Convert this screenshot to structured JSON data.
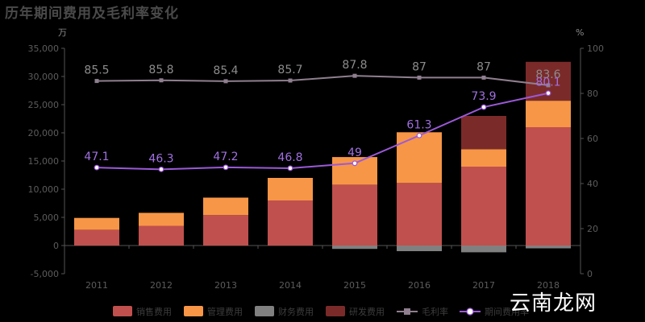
{
  "chart_data": {
    "type": "bar",
    "title": "历年期间费用及毛利率变化",
    "left_unit": "万",
    "right_unit": "%",
    "categories": [
      "2011",
      "2012",
      "2013",
      "2014",
      "2015",
      "2016",
      "2017",
      "2018"
    ],
    "ylim_left": [
      -5000,
      35000
    ],
    "yticks_left": [
      -5000,
      0,
      5000,
      10000,
      15000,
      20000,
      25000,
      30000,
      35000
    ],
    "yticklabels_left": [
      "-5,000",
      "0",
      "5,000",
      "10,000",
      "15,000",
      "20,000",
      "25,000",
      "30,000",
      "35,000"
    ],
    "ylim_right": [
      0,
      100
    ],
    "yticks_right": [
      0,
      20,
      40,
      60,
      80,
      100
    ],
    "yticklabels_right": [
      "0",
      "20",
      "40",
      "60",
      "80",
      "100"
    ],
    "stack_series": [
      {
        "name": "销售费用",
        "color": "#c0504d",
        "values": [
          2800,
          3500,
          5400,
          8000,
          10800,
          11100,
          14000,
          21000
        ]
      },
      {
        "name": "管理费用",
        "color": "#f79646",
        "values": [
          2100,
          2300,
          3100,
          4000,
          4900,
          9000,
          3100,
          4700
        ]
      },
      {
        "name": "财务费用",
        "color": "#808080",
        "values": [
          0,
          0,
          0,
          0,
          -600,
          -1000,
          -1200,
          -500
        ]
      },
      {
        "name": "研发费用",
        "color": "#7b2a2a",
        "values": [
          0,
          0,
          0,
          0,
          0,
          0,
          5900,
          6900
        ]
      }
    ],
    "line_series": [
      {
        "name": "毛利率",
        "color": "#8f7f8f",
        "marker": "square",
        "values": [
          85.5,
          85.8,
          85.4,
          85.7,
          87.8,
          87,
          87,
          83.6
        ],
        "labels": [
          "85.5",
          "85.8",
          "85.4",
          "85.7",
          "87.8",
          "87",
          "87",
          "83.6"
        ],
        "label_color": "#8c8c8c"
      },
      {
        "name": "期间费用率",
        "color": "#9b59d8",
        "marker": "circle",
        "values": [
          47.1,
          46.3,
          47.2,
          46.8,
          49,
          61.3,
          73.9,
          80.1
        ],
        "labels": [
          "47.1",
          "46.3",
          "47.2",
          "46.8",
          "49",
          "61.3",
          "73.9",
          "80.1"
        ],
        "label_color": "#a070e0"
      }
    ],
    "legend_position": "bottom",
    "grid": false
  },
  "watermark": "云南龙网"
}
